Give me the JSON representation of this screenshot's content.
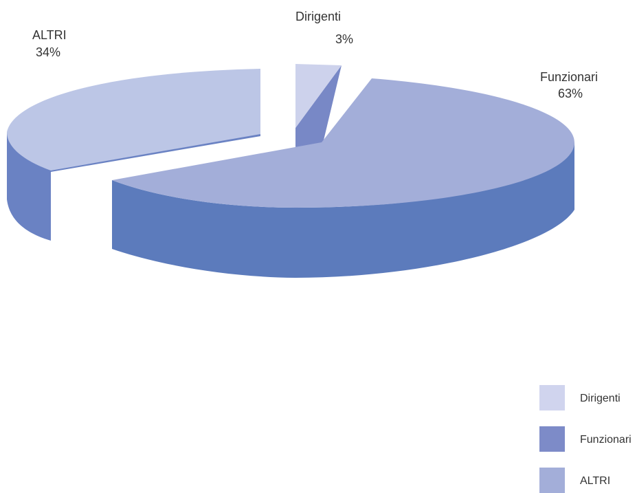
{
  "chart_data": {
    "type": "pie",
    "style": "3d-exploded",
    "title": "",
    "categories": [
      "Dirigenti",
      "Funzionari",
      "ALTRI"
    ],
    "values": [
      3,
      63,
      34
    ],
    "value_labels": [
      "3%",
      "63%",
      "34%"
    ],
    "legend_position": "bottom-right",
    "colors": {
      "Dirigenti": "#cdd2ec",
      "Funzionari": "#a3aed9",
      "ALTRI": "#bcc6e6"
    },
    "side_colors": {
      "Dirigenti": "#7888c6",
      "Funzionari": "#5c7bbc",
      "ALTRI": "#6a82c3"
    },
    "legend_colors": {
      "Dirigenti": "#d0d4ee",
      "Funzionari": "#7d8bc8",
      "ALTRI": "#a3aed9"
    }
  }
}
